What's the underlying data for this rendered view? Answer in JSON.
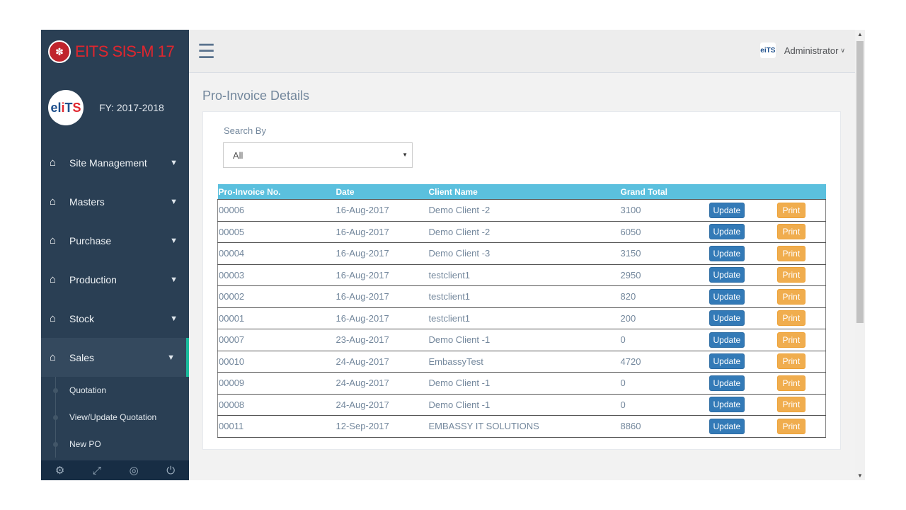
{
  "brand": {
    "title": "EITS SIS-M 17",
    "logo_icon": "paw-icon"
  },
  "profile": {
    "fy": "FY: 2017-2018",
    "avatar_text_blue": "el",
    "avatar_text_red": "i",
    "avatar_text_blue2": "T",
    "avatar_text_red2": "S"
  },
  "sidebar": {
    "items": [
      {
        "label": "Site Management",
        "icon": "home-icon"
      },
      {
        "label": "Masters",
        "icon": "home-icon"
      },
      {
        "label": "Purchase",
        "icon": "home-icon"
      },
      {
        "label": "Production",
        "icon": "home-icon"
      },
      {
        "label": "Stock",
        "icon": "home-icon"
      },
      {
        "label": "Sales",
        "icon": "home-icon"
      }
    ],
    "sales_submenu": [
      "Quotation",
      "View/Update Quotation",
      "New PO"
    ],
    "footer_icons": [
      "settings-icon",
      "fullscreen-icon",
      "eye-slash-icon",
      "power-icon"
    ]
  },
  "topnav": {
    "user": "Administrator"
  },
  "page": {
    "title": "Pro-Invoice Details",
    "search_label": "Search By",
    "search_value": "All"
  },
  "table": {
    "headers": [
      "Pro-Invoice No.",
      "Date",
      "Client Name",
      "Grand Total",
      "",
      ""
    ],
    "update_label": "Update",
    "print_label": "Print",
    "rows": [
      {
        "no": "00006",
        "date": "16-Aug-2017",
        "client": "Demo Client -2",
        "total": "3100"
      },
      {
        "no": "00005",
        "date": "16-Aug-2017",
        "client": "Demo Client -2",
        "total": "6050"
      },
      {
        "no": "00004",
        "date": "16-Aug-2017",
        "client": "Demo Client -3",
        "total": "3150"
      },
      {
        "no": "00003",
        "date": "16-Aug-2017",
        "client": "testclient1",
        "total": "2950"
      },
      {
        "no": "00002",
        "date": "16-Aug-2017",
        "client": "testclient1",
        "total": "820"
      },
      {
        "no": "00001",
        "date": "16-Aug-2017",
        "client": "testclient1",
        "total": "200"
      },
      {
        "no": "00007",
        "date": "23-Aug-2017",
        "client": "Demo Client -1",
        "total": "0"
      },
      {
        "no": "00010",
        "date": "24-Aug-2017",
        "client": "EmbassyTest",
        "total": "4720"
      },
      {
        "no": "00009",
        "date": "24-Aug-2017",
        "client": "Demo Client -1",
        "total": "0"
      },
      {
        "no": "00008",
        "date": "24-Aug-2017",
        "client": "Demo Client -1",
        "total": "0"
      },
      {
        "no": "00011",
        "date": "12-Sep-2017",
        "client": "EMBASSY IT SOLUTIONS",
        "total": "8860"
      }
    ]
  },
  "colors": {
    "sidebar": "#2a3f54",
    "brand_red": "#e0262e",
    "header_blue": "#5bc0de",
    "update_btn": "#337ab7",
    "print_btn": "#f0ad4e"
  }
}
